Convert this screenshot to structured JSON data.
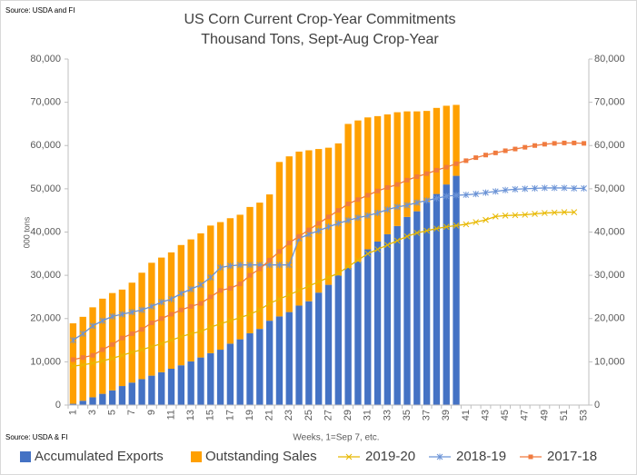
{
  "chart_data": {
    "type": "bar",
    "source_top": "Source: USDA and  FI",
    "source_bottom": "Source: USDA & FI",
    "title": "US Corn Current Crop-Year Commitments",
    "subtitle": "Thousand Tons, Sept-Aug Crop-Year",
    "y_label": "000 tons",
    "x_label": "Weeks, 1=Sep 7, etc.",
    "categories": [
      1,
      null,
      3,
      null,
      5,
      null,
      7,
      null,
      9,
      null,
      11,
      null,
      13,
      null,
      15,
      null,
      17,
      null,
      19,
      null,
      21,
      null,
      23,
      null,
      25,
      null,
      27,
      null,
      29,
      null,
      31,
      null,
      33,
      null,
      35,
      null,
      37,
      null,
      39,
      null,
      41,
      null,
      43,
      null,
      45,
      null,
      47,
      null,
      49,
      null,
      51,
      null,
      53
    ],
    "ylim": [
      0,
      80000
    ],
    "yticks": [
      0,
      {
        "value": 10000,
        "label": "10,000"
      },
      {
        "value": 20000,
        "label": "20,000"
      },
      {
        "value": 30000,
        "label": "30,000"
      },
      {
        "value": 40000,
        "label": "40,000"
      },
      {
        "value": 50000,
        "label": "50,000"
      },
      {
        "value": 60000,
        "label": "60,000"
      },
      {
        "value": 70000,
        "label": "70,000"
      },
      {
        "value": 80000,
        "label": "80,000"
      }
    ],
    "y2lim": [
      0,
      80000
    ],
    "y2ticks": [
      0,
      {
        "value": 10000,
        "label": "10,000"
      },
      {
        "value": 20000,
        "label": "20,000"
      },
      {
        "value": 30000,
        "label": "30,000"
      },
      {
        "value": 40000,
        "label": "40,000"
      },
      {
        "value": 50000,
        "label": "50,000"
      },
      {
        "value": 60000,
        "label": "60,000"
      },
      {
        "value": 70000,
        "label": "70,000"
      },
      {
        "value": 80000,
        "label": "80,000"
      }
    ],
    "grid": false,
    "legend": "bottom",
    "series": [
      {
        "name": "Accumulated Exports",
        "type": "bar",
        "stacked": true,
        "color": "#4472c4",
        "values": [
          300,
          1000,
          1800,
          2600,
          3400,
          4400,
          5200,
          6000,
          6800,
          7600,
          8400,
          9200,
          10100,
          11000,
          12000,
          12800,
          14200,
          15200,
          16600,
          17600,
          19500,
          20500,
          21500,
          23000,
          24000,
          26000,
          27800,
          30000,
          31700,
          33200,
          36000,
          37800,
          39500,
          41400,
          43500,
          44800,
          47000,
          48800,
          51000,
          53000,
          null,
          null,
          null,
          null,
          null,
          null,
          null,
          null,
          null,
          null,
          null,
          null,
          null
        ]
      },
      {
        "name": "Outstanding Sales",
        "type": "bar",
        "stacked": true,
        "color": "#ffa000",
        "values": [
          18600,
          19400,
          20800,
          22000,
          22500,
          22300,
          23100,
          24600,
          26100,
          26500,
          26900,
          27800,
          28200,
          28700,
          29500,
          29500,
          29000,
          28800,
          29200,
          29200,
          29200,
          35700,
          36000,
          35600,
          34900,
          33200,
          31700,
          30500,
          33300,
          32600,
          30500,
          29000,
          27700,
          26300,
          24400,
          23100,
          21000,
          19900,
          18200,
          16400,
          null,
          null,
          null,
          null,
          null,
          null,
          null,
          null,
          null,
          null,
          null,
          null,
          null
        ]
      },
      {
        "name": "2019-20",
        "type": "line",
        "marker": "x",
        "color": "#e8b800",
        "values": [
          9000,
          9300,
          9700,
          10200,
          10800,
          11500,
          12200,
          12800,
          13500,
          14200,
          15000,
          15800,
          16500,
          17000,
          18000,
          18800,
          19500,
          20200,
          21000,
          22000,
          23500,
          24500,
          25500,
          26500,
          27500,
          28500,
          29500,
          30500,
          32000,
          33500,
          35000,
          36000,
          37000,
          38000,
          39000,
          39800,
          40300,
          40800,
          41200,
          41500,
          41800,
          42300,
          42800,
          43600,
          43800,
          43900,
          44000,
          44200,
          44400,
          44500,
          44600,
          44600,
          null
        ]
      },
      {
        "name": "2018-19",
        "type": "line",
        "marker": "star",
        "color": "#6b93d6",
        "values": [
          15000,
          16500,
          18300,
          19500,
          20500,
          21000,
          21500,
          22000,
          22800,
          23800,
          24500,
          25800,
          26800,
          27800,
          29500,
          31800,
          32200,
          32400,
          32400,
          32400,
          32400,
          32400,
          32400,
          38500,
          39500,
          40300,
          41200,
          42000,
          42700,
          43300,
          43800,
          44400,
          45200,
          45800,
          46200,
          46800,
          47300,
          47800,
          48300,
          48500,
          48600,
          48800,
          49100,
          49400,
          49700,
          49900,
          50000,
          50100,
          50200,
          50200,
          50200,
          50100,
          50100
        ]
      },
      {
        "name": "2017-18",
        "type": "line",
        "marker": "square",
        "color": "#f07b3f",
        "values": [
          10500,
          11000,
          11500,
          12800,
          14000,
          15500,
          16500,
          17500,
          19000,
          20000,
          21000,
          22000,
          22800,
          23500,
          25000,
          26500,
          27000,
          28000,
          30000,
          31500,
          33500,
          35500,
          37500,
          39000,
          40500,
          42000,
          43500,
          45000,
          46500,
          47500,
          48500,
          49500,
          50300,
          51000,
          52000,
          52800,
          53500,
          54300,
          55000,
          55800,
          56500,
          57200,
          57800,
          58300,
          58800,
          59200,
          59600,
          60000,
          60300,
          60500,
          60600,
          60600,
          60500
        ]
      }
    ]
  }
}
